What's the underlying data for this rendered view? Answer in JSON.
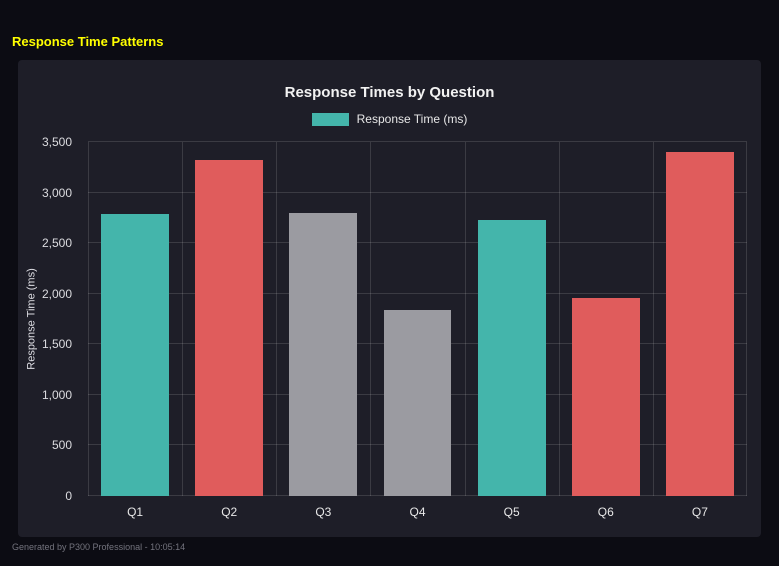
{
  "header": {
    "title": "Response Time Patterns"
  },
  "footer": {
    "text": "Generated by P300 Professional - 10:05:14"
  },
  "ui": {
    "title_color": "#ffff00",
    "background_color": "#0c0c13",
    "panel_color": "#1e1e28"
  },
  "chart_data": {
    "type": "bar",
    "title": "Response Times by Question",
    "legend": "Response Time (ms)",
    "legend_position": "top",
    "xlabel": "",
    "ylabel": "Response Time (ms)",
    "categories": [
      "Q1",
      "Q2",
      "Q3",
      "Q4",
      "Q5",
      "Q6",
      "Q7"
    ],
    "values": [
      2790,
      3320,
      2800,
      1840,
      2730,
      1960,
      3400
    ],
    "bar_colors": [
      "teal",
      "red",
      "gray",
      "gray",
      "teal",
      "red",
      "red"
    ],
    "colors": {
      "teal": "#44b5ab",
      "red": "#e05c5c",
      "gray": "#9b9ba1"
    },
    "ylim": [
      0,
      3500
    ],
    "ytick_values": [
      0,
      500,
      1000,
      1500,
      2000,
      2500,
      3000,
      3500
    ],
    "ytick_labels": [
      "0",
      "500",
      "1,000",
      "1,500",
      "2,000",
      "2,500",
      "3,000",
      "3,500"
    ],
    "grid": true
  }
}
